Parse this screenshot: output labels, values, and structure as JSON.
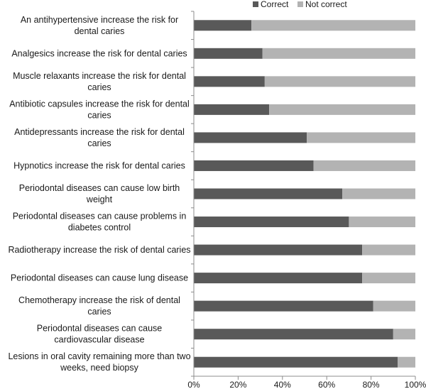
{
  "chart_data": {
    "type": "bar",
    "orientation": "horizontal",
    "stacked": true,
    "categories": [
      [
        "An antihypertensive increase the risk for",
        "dental caries"
      ],
      [
        "Analgesics increase the risk for dental caries"
      ],
      [
        "Muscle relaxants increase the risk for dental",
        "caries"
      ],
      [
        "Antibiotic capsules increase the risk for dental",
        "caries"
      ],
      [
        "Antidepressants increase the risk for dental",
        "caries"
      ],
      [
        "Hypnotics increase the risk for dental caries"
      ],
      [
        "Periodontal diseases can cause low birth",
        "weight"
      ],
      [
        "Periodontal diseases can cause problems in",
        "diabetes control"
      ],
      [
        "Radiotherapy increase the risk of dental caries"
      ],
      [
        "Periodontal diseases can cause lung disease"
      ],
      [
        "Chemotherapy increase the risk of dental",
        "caries"
      ],
      [
        "Periodontal diseases can cause",
        "cardiovascular disease"
      ],
      [
        "Lesions in oral cavity remaining more than two",
        "weeks, need biopsy"
      ]
    ],
    "series": [
      {
        "name": "Correct",
        "color": "#595959",
        "values": [
          26,
          31,
          32,
          34,
          51,
          54,
          67,
          70,
          76,
          76,
          81,
          90,
          92
        ]
      },
      {
        "name": "Not correct",
        "color": "#b3b3b3",
        "values": [
          74,
          69,
          68,
          66,
          49,
          46,
          33,
          30,
          24,
          24,
          19,
          10,
          8
        ]
      }
    ],
    "xlim": [
      0,
      100
    ],
    "xticks": [
      "0%",
      "20%",
      "40%",
      "60%",
      "80%",
      "100%"
    ],
    "legend_position": "top",
    "grid": false
  }
}
